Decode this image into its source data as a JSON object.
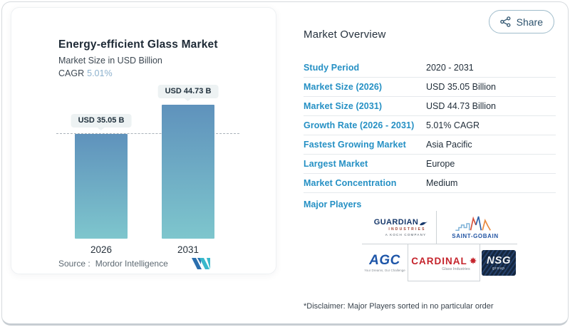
{
  "share": {
    "label": "Share"
  },
  "chart_panel": {
    "title": "Energy-efficient Glass Market",
    "subtitle": "Market Size in USD Billion",
    "cagr_label": "CAGR",
    "cagr_value": "5.01%",
    "source_prefix": "Source :",
    "source_name": "Mordor Intelligence"
  },
  "chart_data": {
    "type": "bar",
    "title": "Energy-efficient Glass Market",
    "ylabel": "Market Size in USD Billion",
    "categories": [
      "2026",
      "2031"
    ],
    "values": [
      35.05,
      44.73
    ],
    "value_labels": [
      "USD 35.05 B",
      "USD 44.73 B"
    ],
    "cagr_percent": 5.01,
    "reference_line": 35.05,
    "ylim": [
      0,
      46
    ],
    "grid": false,
    "legend": false,
    "bar_gradient": [
      "#5f92bc",
      "#7ec6cd"
    ]
  },
  "overview": {
    "heading": "Market Overview",
    "rows": [
      {
        "label": "Study Period",
        "value": "2020 - 2031"
      },
      {
        "label": "Market Size (2026)",
        "value": "USD 35.05 Billion"
      },
      {
        "label": "Market Size (2031)",
        "value": "USD 44.73 Billion"
      },
      {
        "label": "Growth Rate (2026 - 2031)",
        "value": "5.01% CAGR"
      },
      {
        "label": "Fastest Growing Market",
        "value": "Asia Pacific"
      },
      {
        "label": "Largest Market",
        "value": "Europe"
      },
      {
        "label": "Market Concentration",
        "value": "Medium"
      }
    ],
    "major_players_label": "Major Players",
    "players": [
      {
        "name": "Guardian Industries",
        "line1": "GUARDIAN",
        "line2": "INDUSTRIES",
        "line3": "A KOCH COMPANY"
      },
      {
        "name": "Saint-Gobain",
        "label": "SAINT-GOBAIN"
      },
      {
        "name": "AGC",
        "label": "AGC",
        "tagline": "Your Dreams, Our Challenge"
      },
      {
        "name": "Cardinal Glass Industries",
        "label": "CARDINAL",
        "tagline": "Glass Industries"
      },
      {
        "name": "NSG Group",
        "label": "NSG",
        "tagline": "group"
      }
    ],
    "disclaimer": "*Disclaimer: Major Players sorted in no particular order"
  },
  "colors": {
    "accent_label_blue": "#2590c4",
    "bar_top": "#5f92bc",
    "bar_bottom": "#7ec6cd",
    "cagr_value_blue": "#8cb1cd",
    "pill_background": "#edf2f3",
    "dark_text": "#1f2c38"
  }
}
